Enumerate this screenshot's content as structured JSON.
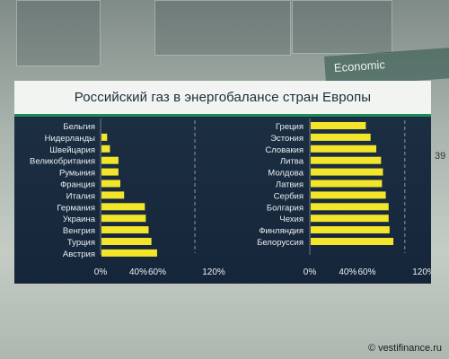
{
  "header": {
    "title": "Российский газ в энергобалансе стран Европы"
  },
  "background": {
    "sign_text": "Economic",
    "side_number": "39"
  },
  "watermark": {
    "symbol": "©",
    "text": "vestifinance.ru"
  },
  "colors": {
    "bar": "#f3e52a",
    "panel": "#1c2e42",
    "accent": "#1e8a5a",
    "text": "#e8eef2"
  },
  "chart_data": [
    {
      "type": "bar",
      "orientation": "horizontal",
      "categories": [
        "Бельгия",
        "Нидерланды",
        "Швейцария",
        "Великобритания",
        "Румыния",
        "Франция",
        "Италия",
        "Германия",
        "Украина",
        "Венгрия",
        "Турция",
        "Австрия"
      ],
      "values": [
        0,
        6,
        9,
        18,
        18,
        20,
        24,
        46,
        47,
        50,
        53,
        59
      ],
      "xlim": [
        0,
        120
      ],
      "ticks": [
        "0%",
        "40%",
        "60%",
        "120%"
      ],
      "tick_values": [
        0,
        40,
        60,
        120
      ],
      "reference_line": 100
    },
    {
      "type": "bar",
      "orientation": "horizontal",
      "categories": [
        "Греция",
        "Эстония",
        "Словакия",
        "Литва",
        "Молдова",
        "Латвия",
        "Сербия",
        "Болгария",
        "Чехия",
        "Финляндия",
        "Белоруссия"
      ],
      "values": [
        58,
        63,
        69,
        74,
        76,
        75,
        79,
        82,
        82,
        83,
        87
      ],
      "xlim": [
        0,
        120
      ],
      "ticks": [
        "0%",
        "40%",
        "60%",
        "120%"
      ],
      "tick_values": [
        0,
        40,
        60,
        120
      ],
      "reference_line": 100
    }
  ]
}
